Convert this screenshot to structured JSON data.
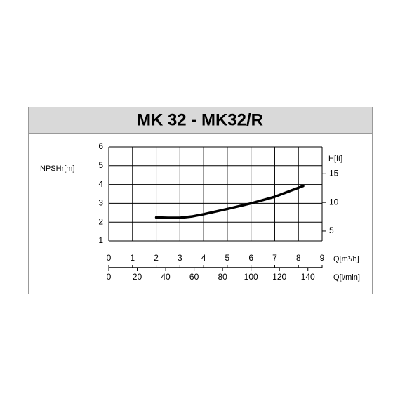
{
  "chart_data": {
    "type": "line",
    "title": "MK 32 - MK32/R",
    "y_label": "NPSHr[m]",
    "y2_label": "H[ft]",
    "x_label": "Q[m³/h]",
    "x2_label": "Q[l/min]",
    "x": [
      2,
      2.5,
      3,
      3.5,
      4,
      5,
      6,
      7,
      8.2
    ],
    "series": [
      {
        "color": "#000000",
        "values": [
          2.25,
          2.23,
          2.23,
          2.3,
          2.42,
          2.7,
          3.0,
          3.35,
          3.92
        ]
      }
    ],
    "xlim": [
      0,
      9
    ],
    "xticks": [
      0,
      1,
      2,
      3,
      4,
      5,
      6,
      7,
      8,
      9
    ],
    "ylim": [
      1,
      6
    ],
    "yticks": [
      1,
      2,
      3,
      4,
      5,
      6
    ],
    "y2lim": [
      3.28,
      19.69
    ],
    "y2ticks": [
      5,
      10,
      15
    ],
    "x2lim": [
      0,
      150
    ],
    "x2ticks": [
      0,
      20,
      40,
      60,
      80,
      100,
      120,
      140
    ],
    "grid": true
  }
}
